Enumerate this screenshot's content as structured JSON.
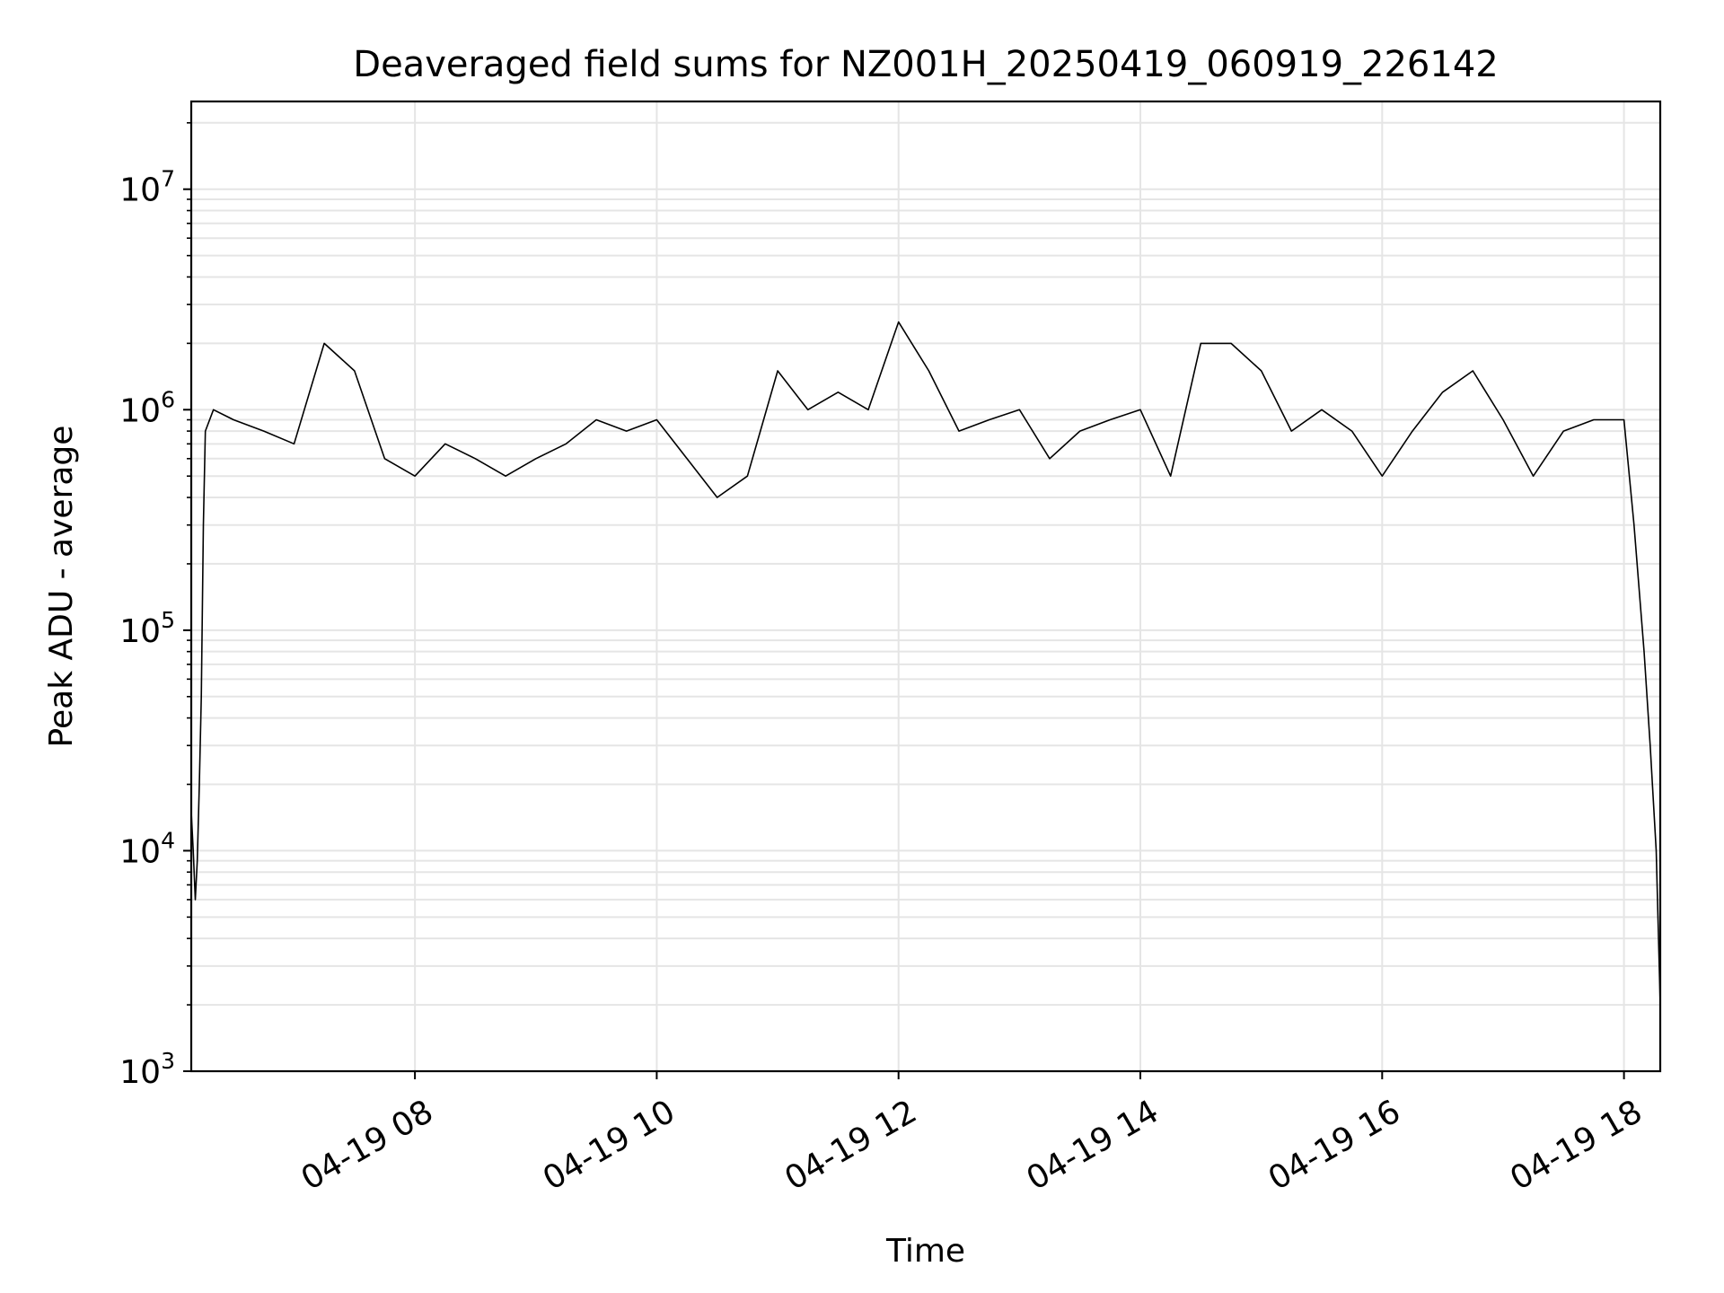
{
  "chart_data": {
    "type": "line",
    "title": "Deaveraged field sums for NZ001H_20250419_060919_226142",
    "xlabel": "Time",
    "ylabel": "Peak ADU - average",
    "yscale": "log",
    "ylim": [
      1000,
      25000000
    ],
    "xlim": [
      "2025-04-19 06:09",
      "2025-04-19 18:18"
    ],
    "grid": true,
    "legend": "none",
    "line_color": "#000000",
    "grid_color": "#e5e5e5",
    "y_ticks": [
      {
        "value": 1000,
        "mantissa": "10",
        "exp": "3"
      },
      {
        "value": 10000,
        "mantissa": "10",
        "exp": "4"
      },
      {
        "value": 100000,
        "mantissa": "10",
        "exp": "5"
      },
      {
        "value": 1000000,
        "mantissa": "10",
        "exp": "6"
      },
      {
        "value": 10000000,
        "mantissa": "10",
        "exp": "7"
      }
    ],
    "x_ticks": [
      {
        "time": "2025-04-19 08:00",
        "label": "04-19 08"
      },
      {
        "time": "2025-04-19 10:00",
        "label": "04-19 10"
      },
      {
        "time": "2025-04-19 12:00",
        "label": "04-19 12"
      },
      {
        "time": "2025-04-19 14:00",
        "label": "04-19 14"
      },
      {
        "time": "2025-04-19 16:00",
        "label": "04-19 16"
      },
      {
        "time": "2025-04-19 18:00",
        "label": "04-19 18"
      }
    ],
    "series": [
      {
        "color": "#000000",
        "x": [
          "2025-04-19 06:09",
          "2025-04-19 06:10",
          "2025-04-19 06:11",
          "2025-04-19 06:12",
          "2025-04-19 06:13",
          "2025-04-19 06:14",
          "2025-04-19 06:15",
          "2025-04-19 06:16",
          "2025-04-19 06:20",
          "2025-04-19 06:30",
          "2025-04-19 06:45",
          "2025-04-19 07:00",
          "2025-04-19 07:15",
          "2025-04-19 07:30",
          "2025-04-19 07:45",
          "2025-04-19 08:00",
          "2025-04-19 08:15",
          "2025-04-19 08:30",
          "2025-04-19 08:45",
          "2025-04-19 09:00",
          "2025-04-19 09:15",
          "2025-04-19 09:30",
          "2025-04-19 09:45",
          "2025-04-19 10:00",
          "2025-04-19 10:15",
          "2025-04-19 10:30",
          "2025-04-19 10:45",
          "2025-04-19 11:00",
          "2025-04-19 11:15",
          "2025-04-19 11:30",
          "2025-04-19 11:45",
          "2025-04-19 12:00",
          "2025-04-19 12:15",
          "2025-04-19 12:30",
          "2025-04-19 12:45",
          "2025-04-19 13:00",
          "2025-04-19 13:15",
          "2025-04-19 13:30",
          "2025-04-19 13:45",
          "2025-04-19 14:00",
          "2025-04-19 14:15",
          "2025-04-19 14:30",
          "2025-04-19 14:45",
          "2025-04-19 15:00",
          "2025-04-19 15:15",
          "2025-04-19 15:30",
          "2025-04-19 15:45",
          "2025-04-19 16:00",
          "2025-04-19 16:15",
          "2025-04-19 16:30",
          "2025-04-19 16:45",
          "2025-04-19 17:00",
          "2025-04-19 17:15",
          "2025-04-19 17:30",
          "2025-04-19 17:45",
          "2025-04-19 18:00",
          "2025-04-19 18:05",
          "2025-04-19 18:10",
          "2025-04-19 18:13",
          "2025-04-19 18:16",
          "2025-04-19 18:18"
        ],
        "y": [
          15000,
          10000,
          6000,
          9000,
          20000,
          50000,
          300000,
          800000,
          1000000,
          900000,
          800000,
          700000,
          2000000,
          1500000,
          600000,
          500000,
          700000,
          600000,
          500000,
          600000,
          700000,
          900000,
          800000,
          900000,
          600000,
          400000,
          500000,
          1500000,
          1000000,
          1200000,
          1000000,
          2500000,
          1500000,
          800000,
          900000,
          1000000,
          600000,
          800000,
          900000,
          1000000,
          500000,
          2000000,
          2000000,
          1500000,
          800000,
          1000000,
          800000,
          500000,
          800000,
          1200000,
          1500000,
          900000,
          500000,
          800000,
          900000,
          900000,
          300000,
          80000,
          30000,
          10000,
          2000
        ]
      }
    ]
  }
}
